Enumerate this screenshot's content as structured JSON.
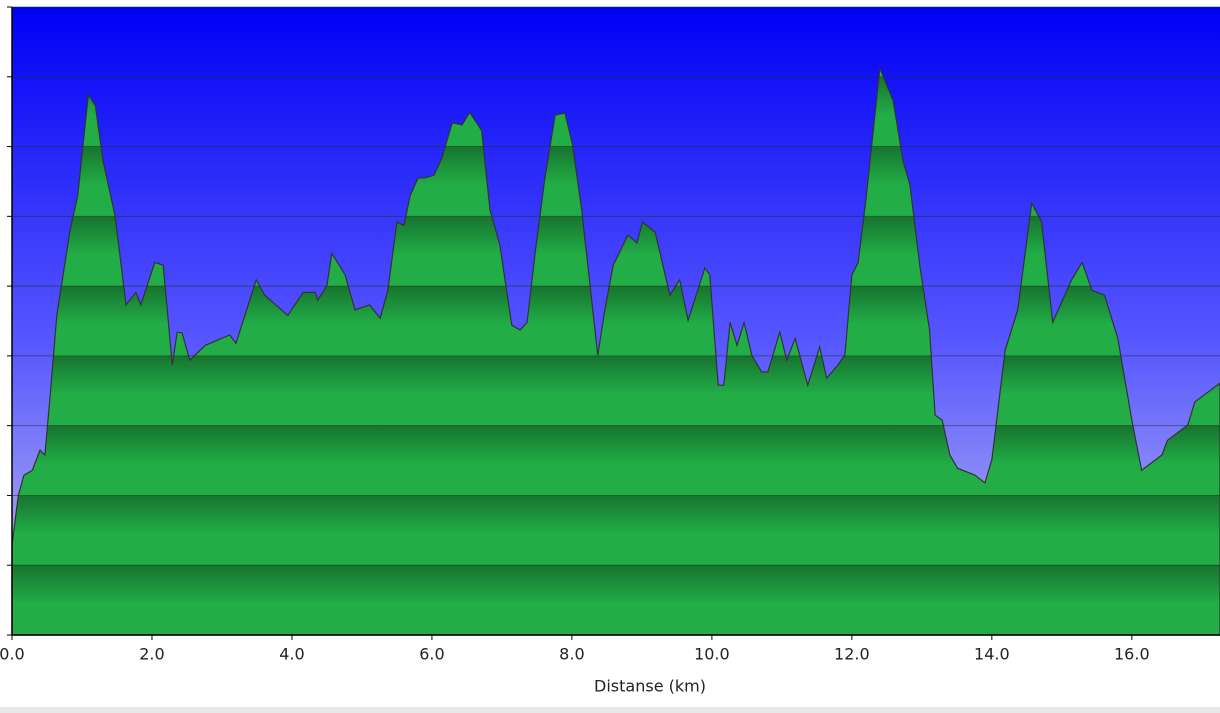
{
  "chart_data": {
    "type": "area",
    "x_label": "Distanse   (km)",
    "x": [
      0,
      0.09,
      0.17,
      0.29,
      0.4,
      0.47,
      0.54,
      0.64,
      0.83,
      0.94,
      1.09,
      1.19,
      1.3,
      1.47,
      1.63,
      1.77,
      1.84,
      2.04,
      2.16,
      2.29,
      2.36,
      2.43,
      2.54,
      2.76,
      3.11,
      3.2,
      3.49,
      3.61,
      3.94,
      4.16,
      4.33,
      4.37,
      4.5,
      4.57,
      4.76,
      4.9,
      5.11,
      5.26,
      5.37,
      5.5,
      5.6,
      5.69,
      5.8,
      5.9,
      6.03,
      6.14,
      6.29,
      6.43,
      6.54,
      6.71,
      6.83,
      6.97,
      7.14,
      7.26,
      7.36,
      7.47,
      7.61,
      7.76,
      7.9,
      8.01,
      8.14,
      8.29,
      8.37,
      8.47,
      8.59,
      8.8,
      8.93,
      9.01,
      9.19,
      9.4,
      9.54,
      9.66,
      9.9,
      9.97,
      10.09,
      10.17,
      10.26,
      10.36,
      10.46,
      10.57,
      10.71,
      10.8,
      10.97,
      11.07,
      11.19,
      11.37,
      11.54,
      11.64,
      11.8,
      11.9,
      12.0,
      12.09,
      12.2,
      12.4,
      12.59,
      12.73,
      12.83,
      12.97,
      13.11,
      13.19,
      13.29,
      13.4,
      13.51,
      13.76,
      13.9,
      14.0,
      14.19,
      14.37,
      14.57,
      14.71,
      14.87,
      15.14,
      15.29,
      15.43,
      15.61,
      15.8,
      16.0,
      16.14,
      16.43,
      16.51,
      16.8,
      16.9,
      17.26
    ],
    "values": [
      1.29,
      2.0,
      2.29,
      2.36,
      2.65,
      2.58,
      3.37,
      4.58,
      5.8,
      6.3,
      7.74,
      7.59,
      6.8,
      6.02,
      4.73,
      4.91,
      4.73,
      5.34,
      5.3,
      3.87,
      4.34,
      4.33,
      3.94,
      4.15,
      4.3,
      4.18,
      5.09,
      4.87,
      4.58,
      4.91,
      4.91,
      4.8,
      5.01,
      5.47,
      5.16,
      4.66,
      4.73,
      4.54,
      4.94,
      5.92,
      5.87,
      6.3,
      6.55,
      6.55,
      6.59,
      6.83,
      7.34,
      7.31,
      7.49,
      7.23,
      6.09,
      5.59,
      4.44,
      4.37,
      4.48,
      5.44,
      6.52,
      7.45,
      7.48,
      7.02,
      6.09,
      4.73,
      4.01,
      4.66,
      5.3,
      5.73,
      5.62,
      5.92,
      5.77,
      4.87,
      5.09,
      4.51,
      5.26,
      5.16,
      3.58,
      3.58,
      4.48,
      4.15,
      4.48,
      4.01,
      3.77,
      3.77,
      4.34,
      3.94,
      4.25,
      3.58,
      4.13,
      3.68,
      3.87,
      4.01,
      5.16,
      5.34,
      6.23,
      8.12,
      7.66,
      6.8,
      6.45,
      5.3,
      4.37,
      3.15,
      3.08,
      2.58,
      2.39,
      2.29,
      2.18,
      2.51,
      4.08,
      4.66,
      6.19,
      5.92,
      4.48,
      5.09,
      5.34,
      4.94,
      4.87,
      4.25,
      3.08,
      2.36,
      2.58,
      2.79,
      3.01,
      3.34,
      3.61
    ],
    "color": "#22aa44",
    "xlim": [
      0,
      17.26
    ],
    "ylim": [
      0,
      9
    ],
    "xticks": [
      {
        "value": 0,
        "label": "0.0"
      },
      {
        "value": 2,
        "label": "2.0"
      },
      {
        "value": 4,
        "label": "4.0"
      },
      {
        "value": 6,
        "label": "6.0"
      },
      {
        "value": 8,
        "label": "8.0"
      },
      {
        "value": 10,
        "label": "10.0"
      },
      {
        "value": 12,
        "label": "12.0"
      },
      {
        "value": 14,
        "label": "14.0"
      },
      {
        "value": 16,
        "label": "16.0"
      }
    ],
    "yticks": [
      0,
      1,
      2,
      3,
      4,
      5,
      6,
      7,
      8,
      9
    ],
    "grid": true
  }
}
